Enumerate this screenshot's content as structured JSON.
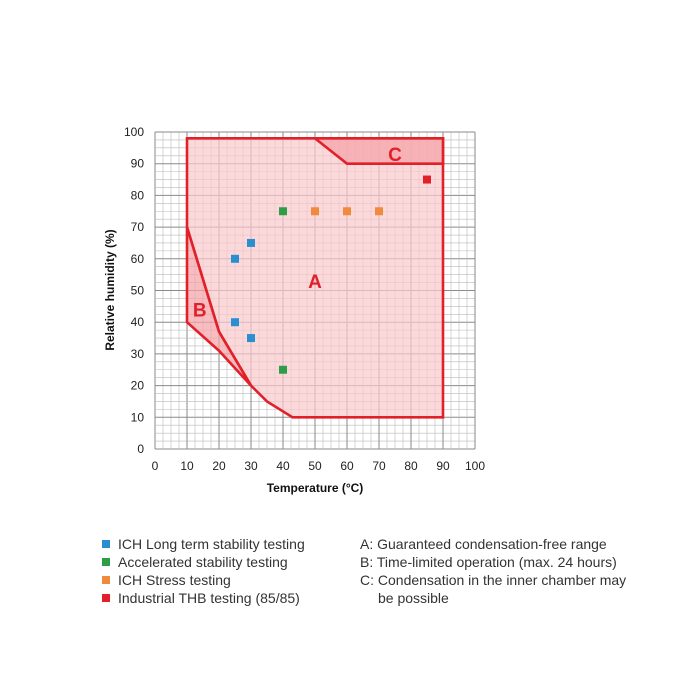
{
  "chart_data": {
    "type": "scatter",
    "xlabel": "Temperature (°C)",
    "ylabel": "Relative humidity (%)",
    "xlim": [
      0,
      100
    ],
    "ylim": [
      0,
      100
    ],
    "x_ticks": [
      0,
      10,
      20,
      30,
      40,
      50,
      60,
      70,
      80,
      90,
      100
    ],
    "y_ticks": [
      0,
      10,
      20,
      30,
      40,
      50,
      60,
      70,
      80,
      90,
      100
    ],
    "grid": true,
    "regions": [
      {
        "label": "A",
        "fill": "#f9c9cc",
        "outline": "#e2202a",
        "polygon": [
          [
            10,
            98
          ],
          [
            90,
            98
          ],
          [
            90,
            10
          ],
          [
            43,
            10
          ],
          [
            35,
            15
          ],
          [
            30,
            20
          ],
          [
            20,
            37
          ],
          [
            10,
            70
          ]
        ],
        "label_at": [
          50,
          53
        ]
      },
      {
        "label": "B",
        "fill": "#f4a3a8",
        "outline": "#e2202a",
        "polygon": [
          [
            10,
            70
          ],
          [
            20,
            37
          ],
          [
            30,
            20
          ],
          [
            20,
            31
          ],
          [
            10,
            40
          ]
        ],
        "label_at": [
          14,
          44
        ]
      },
      {
        "label": "C",
        "fill": "#f4a3a8",
        "outline": "#e2202a",
        "polygon": [
          [
            50,
            98
          ],
          [
            90,
            98
          ],
          [
            90,
            90
          ],
          [
            60,
            90
          ]
        ],
        "label_at": [
          75,
          93
        ]
      }
    ],
    "series": [
      {
        "name": "ICH Long term stability testing",
        "color": "#2a8fd0",
        "points": [
          [
            25,
            60
          ],
          [
            30,
            65
          ],
          [
            25,
            40
          ],
          [
            30,
            35
          ]
        ]
      },
      {
        "name": "Accelerated stability testing",
        "color": "#2e9d48",
        "points": [
          [
            40,
            75
          ],
          [
            40,
            25
          ]
        ]
      },
      {
        "name": "ICH Stress testing",
        "color": "#f08a3c",
        "points": [
          [
            50,
            75
          ],
          [
            60,
            75
          ],
          [
            70,
            75
          ]
        ]
      },
      {
        "name": "Industrial THB testing (85/85)",
        "color": "#e2202a",
        "points": [
          [
            85,
            85
          ]
        ]
      }
    ]
  },
  "notes": {
    "a": "A: Guaranteed condensation-free range",
    "b": "B: Time-limited operation (max. 24 hours)",
    "c_line1": "C: Condensation in the inner chamber may",
    "c_line2": "be possible"
  }
}
